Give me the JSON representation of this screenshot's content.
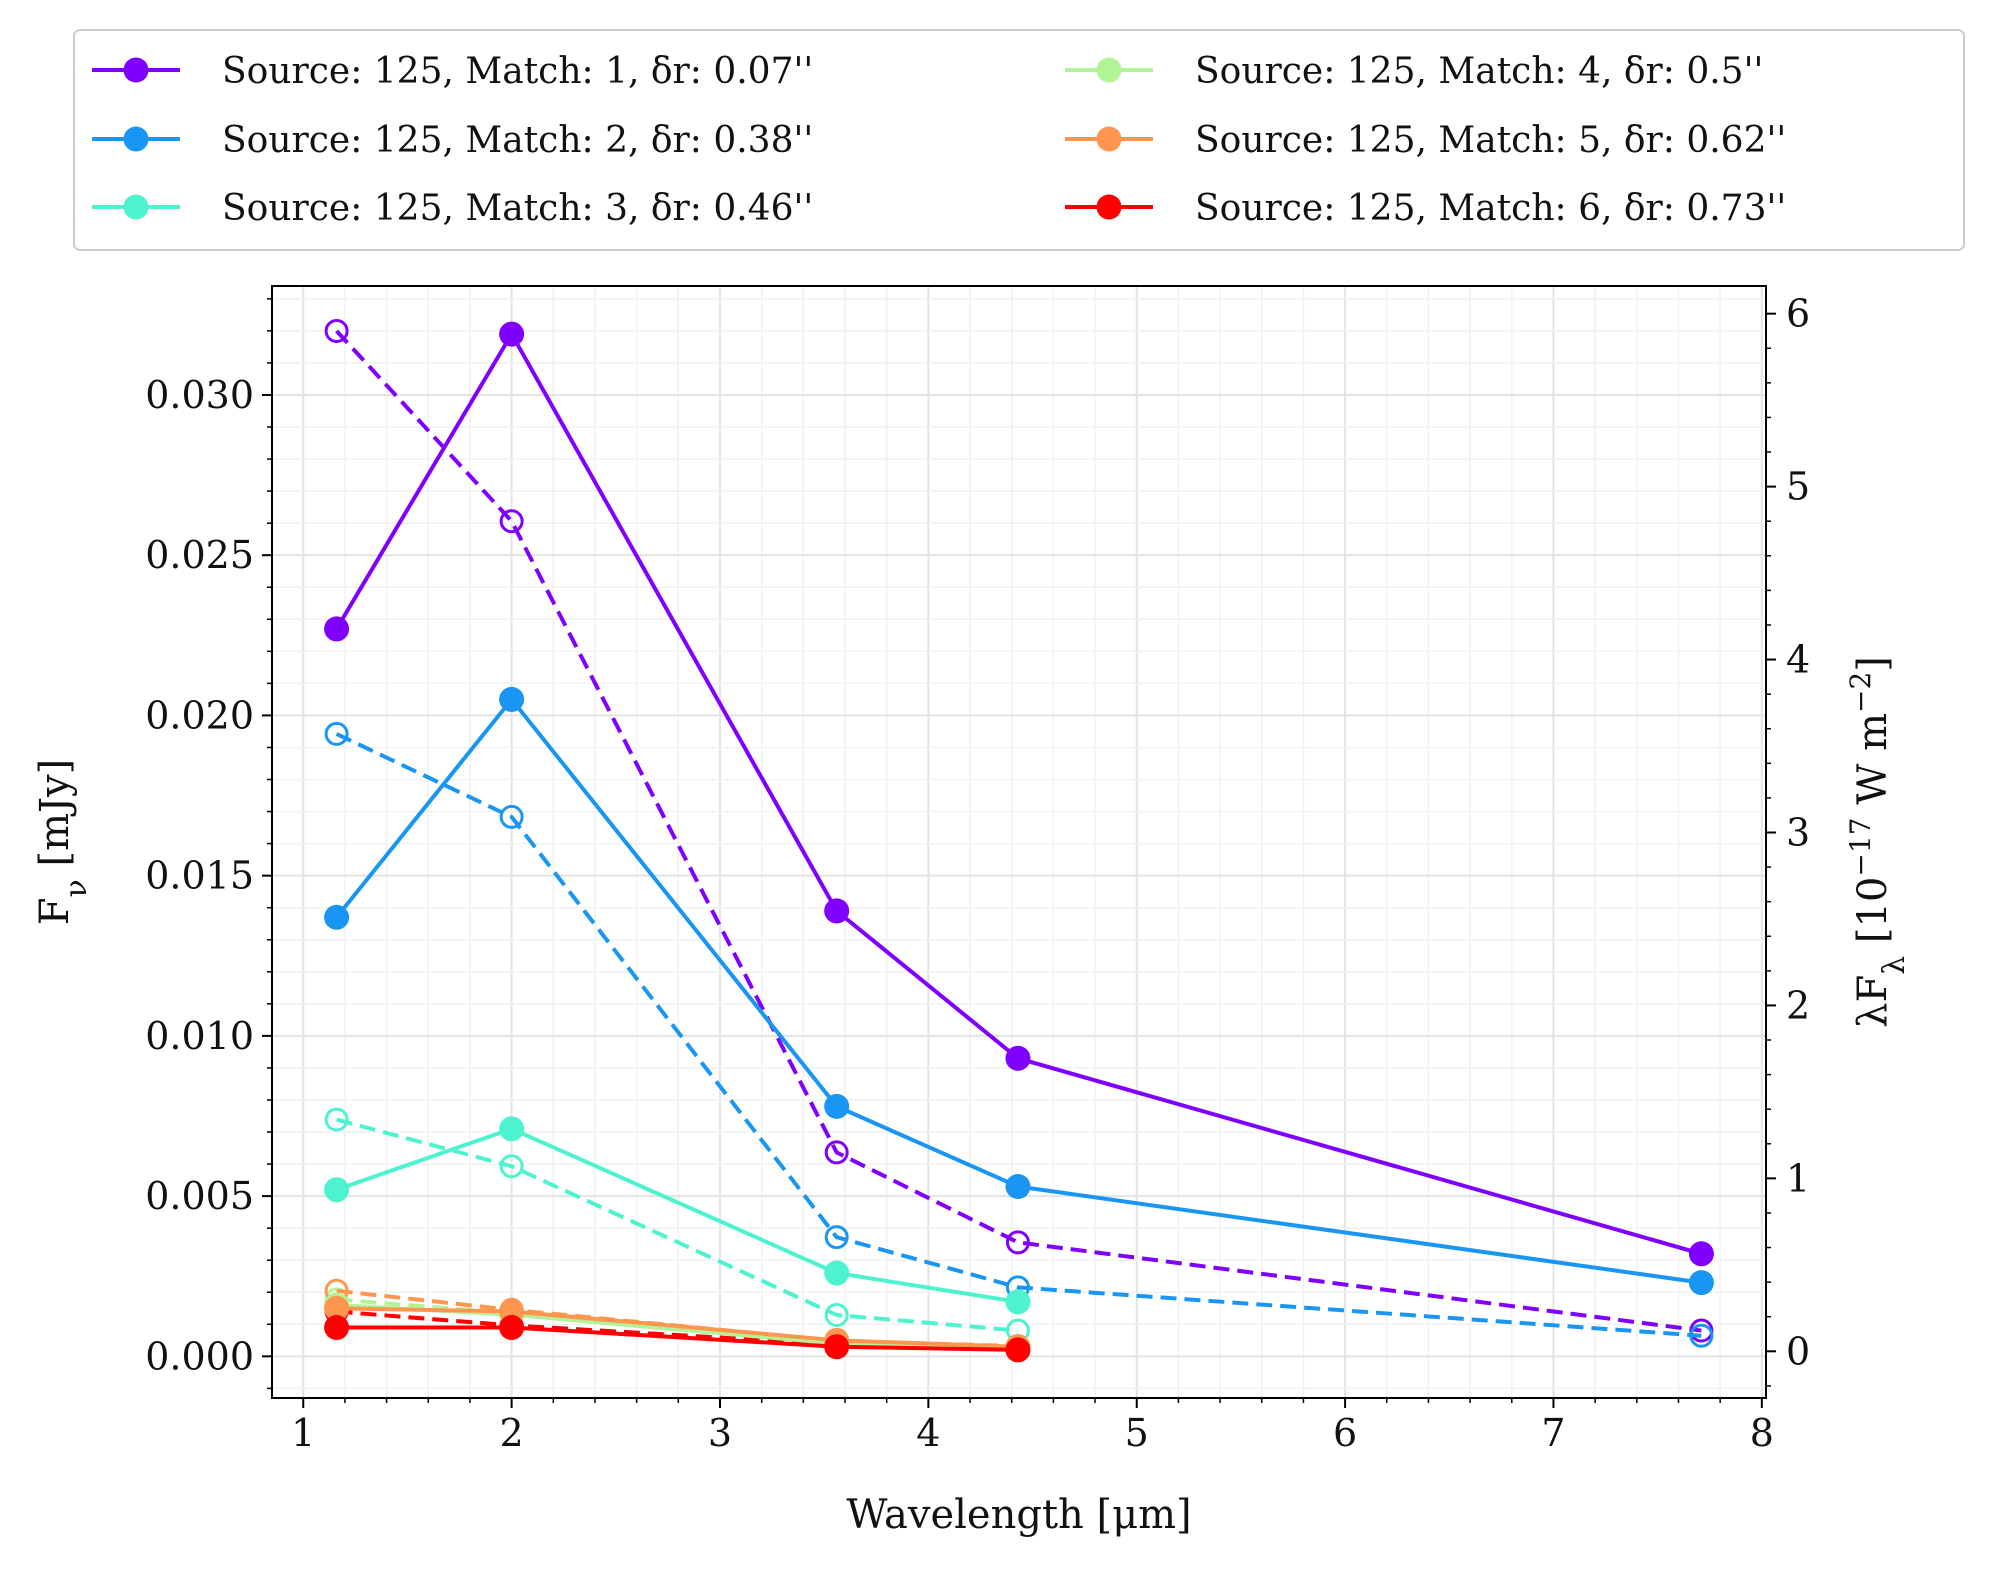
{
  "chart_data": {
    "type": "line",
    "xlabel": "Wavelength [μm]",
    "ylabel": "F",
    "ylabel_sub": "ν",
    "ylabel_unit": " [mJy]",
    "y2label": "λF",
    "y2label_sub": "λ",
    "y2label_unit_pre": " [10",
    "y2label_unit_sup": "−17",
    "y2label_unit_mid": " W m",
    "y2label_unit_sup2": "−2",
    "y2label_unit_post": "]",
    "xlim": [
      0.85,
      8.02
    ],
    "ylim": [
      -0.0013,
      0.0334
    ],
    "y2lim": [
      -0.27,
      6.16
    ],
    "x_ticks": [
      1,
      2,
      3,
      4,
      5,
      6,
      7,
      8
    ],
    "x_tick_labels": [
      "1",
      "2",
      "3",
      "4",
      "5",
      "6",
      "7",
      "8"
    ],
    "y_ticks": [
      0.0,
      0.005,
      0.01,
      0.015,
      0.02,
      0.025,
      0.03
    ],
    "y_tick_labels": [
      "0.000",
      "0.005",
      "0.010",
      "0.015",
      "0.020",
      "0.025",
      "0.030"
    ],
    "y2_ticks": [
      0,
      1,
      2,
      3,
      4,
      5,
      6
    ],
    "y2_tick_labels": [
      "0",
      "1",
      "2",
      "3",
      "4",
      "5",
      "6"
    ],
    "grid": true,
    "legend_position": "top",
    "legend_columns": 2,
    "solid_axis": "left (Fν), filled markers",
    "dashed_axis": "right (λFλ), open markers",
    "series": [
      {
        "name": "Source: 125, Match: 1, δr: 0.07''",
        "color": "#8000ff",
        "x": [
          1.16,
          2.0,
          3.56,
          4.43,
          7.71
        ],
        "fnu": [
          0.0227,
          0.0319,
          0.0139,
          0.0093,
          0.0032
        ],
        "lam_flam": [
          5.9,
          4.8,
          1.15,
          0.63,
          0.12
        ]
      },
      {
        "name": "Source: 125, Match: 2, δr: 0.38''",
        "color": "#1996f3",
        "x": [
          1.16,
          2.0,
          3.56,
          4.43,
          7.71
        ],
        "fnu": [
          0.0137,
          0.0205,
          0.0078,
          0.0053,
          0.0023
        ],
        "lam_flam": [
          3.57,
          3.09,
          0.66,
          0.37,
          0.09
        ]
      },
      {
        "name": "Source: 125, Match: 3, δr: 0.46''",
        "color": "#4df3ce",
        "x": [
          1.16,
          2.0,
          3.56,
          4.43
        ],
        "fnu": [
          0.0052,
          0.0071,
          0.0026,
          0.0017
        ],
        "lam_flam": [
          1.34,
          1.07,
          0.21,
          0.12
        ]
      },
      {
        "name": "Source: 125, Match: 4, δr: 0.5''",
        "color": "#b2f396",
        "x": [
          1.16,
          2.0,
          3.56,
          4.43
        ],
        "fnu": [
          0.0016,
          0.0013,
          0.0004,
          0.0003
        ],
        "lam_flam": [
          0.3,
          0.22,
          0.05,
          0.03
        ]
      },
      {
        "name": "Source: 125, Match: 5, δr: 0.62''",
        "color": "#ff964f",
        "x": [
          1.16,
          2.0,
          3.56,
          4.43
        ],
        "fnu": [
          0.0015,
          0.0014,
          0.0005,
          0.0003
        ],
        "lam_flam": [
          0.35,
          0.24,
          0.06,
          0.03
        ]
      },
      {
        "name": "Source: 125, Match: 6, δr: 0.73''",
        "color": "#ff0000",
        "x": [
          1.16,
          2.0,
          3.56,
          4.43
        ],
        "fnu": [
          0.0009,
          0.0009,
          0.0003,
          0.0002
        ],
        "lam_flam": [
          0.23,
          0.15,
          0.04,
          0.02
        ]
      }
    ]
  }
}
